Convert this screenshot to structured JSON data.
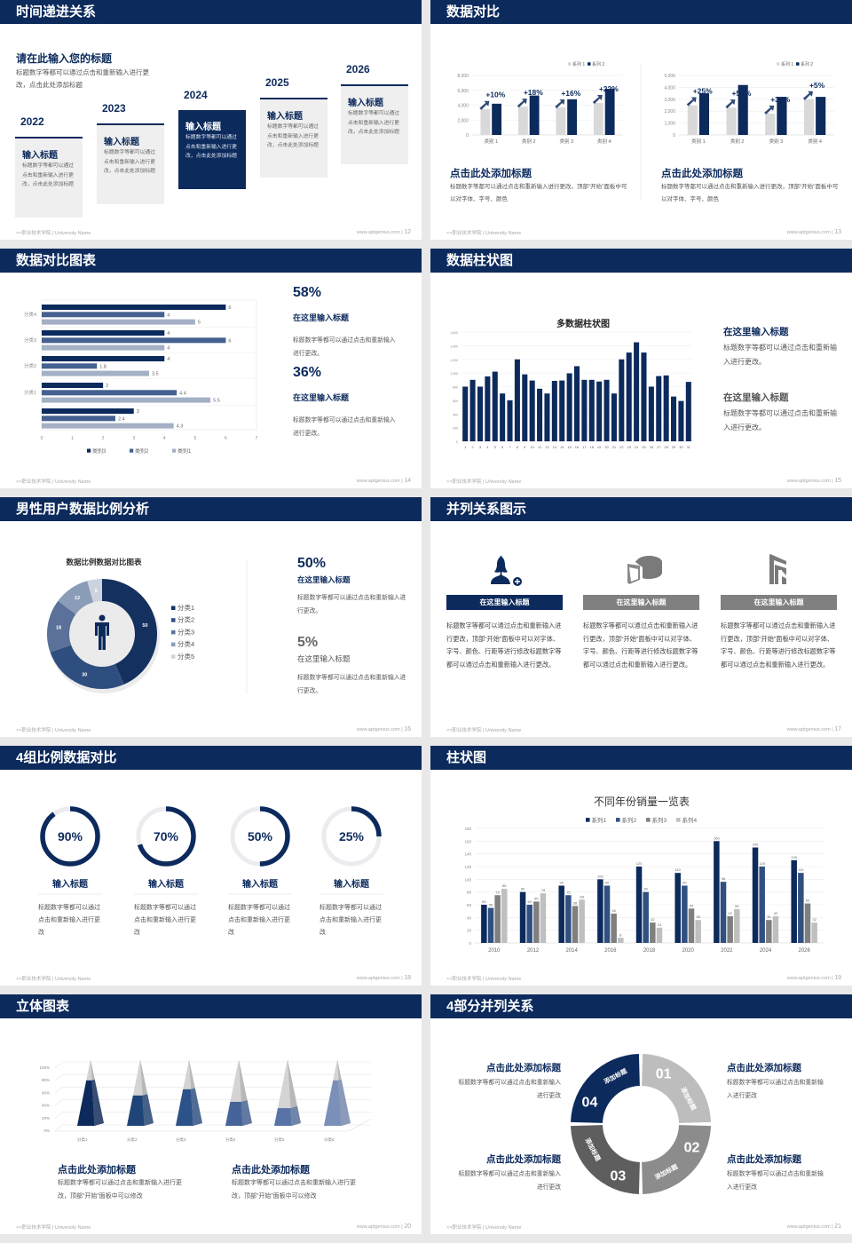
{
  "colors": {
    "navy": "#0c2a5c",
    "light_gray": "#d9d9d9",
    "mid_gray": "#808080",
    "bg": "#e8e8e8"
  },
  "footer": {
    "school": "××职业技术学院 | University Name",
    "site": "www.aptgenius.com"
  },
  "slides": [
    {
      "title": "时间递进关系",
      "page": "12",
      "heading": "请在此输入您的标题",
      "desc": "标题数字等都可以通过点击和重新输入进行更改，点击此处添加标题",
      "steps": [
        {
          "year": "2022",
          "title": "输入标题",
          "text": "标题数字等都可以通过点击和重新输入进行更改，点击此处添加标题"
        },
        {
          "year": "2023",
          "title": "输入标题",
          "text": "标题数字等都可以通过点击和重新输入进行更改，点击此处添加标题"
        },
        {
          "year": "2024",
          "title": "输入标题",
          "text": "标题数字等都可以通过点击和重新输入进行更改，点击此处添加标题"
        },
        {
          "year": "2025",
          "title": "输入标题",
          "text": "标题数字等都可以通过点击和重新输入进行更改，点击此处添加标题"
        },
        {
          "year": "2026",
          "title": "输入标题",
          "text": "标题数字等都可以通过点击和重新输入进行更改，点击此处添加标题"
        }
      ]
    },
    {
      "title": "数据对比",
      "page": "13",
      "captions": [
        {
          "title": "点击此处添加标题",
          "text": "标题数字等都可以通过点击和重新输入进行更改，顶部“开始”面板中可以对字体、字号、颜色"
        },
        {
          "title": "点击此处添加标题",
          "text": "标题数字等都可以通过点击和重新输入进行更改，顶部“开始”面板中可以对字体、字号、颜色"
        }
      ]
    },
    {
      "title": "数据对比图表",
      "page": "14",
      "stats": [
        {
          "value": "58%",
          "title": "在这里输入标题",
          "text": "标题数字等都可以通过点击和重新输入进行更改。"
        },
        {
          "value": "36%",
          "title": "在这里输入标题",
          "text": "标题数字等都可以通过点击和重新输入进行更改。"
        }
      ]
    },
    {
      "title": "数据柱状图",
      "page": "15",
      "stats": [
        {
          "title": "在这里输入标题",
          "text": "标题数字等都可以通过点击和重新输入进行更改。"
        },
        {
          "title": "在这里输入标题",
          "text": "标题数字等都可以通过点击和重新输入进行更改。"
        }
      ]
    },
    {
      "title": "男性用户数据比例分析",
      "page": "16",
      "stats": [
        {
          "value": "50%",
          "title": "在这里输入标题",
          "text": "标题数字等都可以通过点击和重新输入进行更改。"
        },
        {
          "value": "5%",
          "title": "在这里输入标题",
          "text": "标题数字等都可以通过点击和重新输入进行更改。"
        }
      ]
    },
    {
      "title": "并列关系图示",
      "page": "17",
      "items": [
        {
          "icon": "user-add-icon",
          "label": "在这里输入标题",
          "text": "标题数字等都可以通过点击和重新输入进行更改，顶部“开始”面板中可以对字体、字号、颜色、行距等进行修改标题数字等都可以通过点击和重新输入进行更改。",
          "active": true
        },
        {
          "icon": "pie-chart-icon",
          "label": "在这里输入标题",
          "text": "标题数字等都可以通过点击和重新输入进行更改，顶部“开始”面板中可以对字体、字号、颜色、行距等进行修改标题数字等都可以通过点击和重新输入进行更改。",
          "active": false
        },
        {
          "icon": "building-icon",
          "label": "在这里输入标题",
          "text": "标题数字等都可以通过点击和重新输入进行更改，顶部“开始”面板中可以对字体、字号、颜色、行距等进行修改标题数字等都可以通过点击和重新输入进行更改。",
          "active": false
        }
      ]
    },
    {
      "title": "4组比例数据对比",
      "page": "18",
      "items": [
        {
          "label": "90%",
          "value": 90,
          "title": "输入标题",
          "text": "标题数字等都可以通过点击和重新输入进行更改"
        },
        {
          "label": "70%",
          "value": 70,
          "title": "输入标题",
          "text": "标题数字等都可以通过点击和重新输入进行更改"
        },
        {
          "label": "50%",
          "value": 50,
          "title": "输入标题",
          "text": "标题数字等都可以通过点击和重新输入进行更改"
        },
        {
          "label": "25%",
          "value": 25,
          "title": "输入标题",
          "text": "标题数字等都可以通过点击和重新输入进行更改"
        }
      ]
    },
    {
      "title": "柱状图",
      "page": "19"
    },
    {
      "title": "立体图表",
      "page": "20",
      "captions": [
        {
          "title": "点击此处添加标题",
          "text": "标题数字等都可以通过点击和重新输入进行更改，顶部“开始”面板中可以修改"
        },
        {
          "title": "点击此处添加标题",
          "text": "标题数字等都可以通过点击和重新输入进行更改，顶部“开始”面板中可以修改"
        }
      ]
    },
    {
      "title": "4部分并列关系",
      "page": "21",
      "segments": [
        {
          "number": "01",
          "label": "添加标题",
          "color": "#bdbdbd"
        },
        {
          "number": "02",
          "label": "添加标题",
          "color": "#8c8c8c"
        },
        {
          "number": "03",
          "label": "添加标题",
          "color": "#5e5e5e"
        },
        {
          "number": "04",
          "label": "添加标题",
          "color": "#0c2a5c"
        }
      ],
      "blocks": [
        {
          "title": "点击此处添加标题",
          "text": "标题数字等都可以通过点击和重新输入进行更改"
        },
        {
          "title": "点击此处添加标题",
          "text": "标题数字等都可以通过点击和重新输入进行更改"
        },
        {
          "title": "点击此处添加标题",
          "text": "标题数字等都可以通过点击和重新输入进行更改"
        },
        {
          "title": "点击此处添加标题",
          "text": "标题数字等都可以通过点击和重新输入进行更改"
        }
      ]
    }
  ],
  "chart_data": [
    {
      "type": "bar",
      "categories": [
        "类别 1",
        "类别 2",
        "类别 3",
        "类别 4"
      ],
      "ylim": [
        0,
        8000
      ],
      "ytick_labels": [
        "0",
        "2,000",
        "4,000",
        "6,000",
        "8,000"
      ],
      "series": [
        {
          "name": "系列 1",
          "values": [
            3500,
            3800,
            3700,
            4300
          ],
          "color": "#d9d9d9"
        },
        {
          "name": "系列 2",
          "values": [
            4200,
            5300,
            4800,
            6200
          ],
          "color": "#0c2a5c"
        }
      ],
      "annotations": [
        "+10%",
        "+18%",
        "+16%",
        "+22%"
      ],
      "legend": "top-right",
      "grid": true
    },
    {
      "type": "bar",
      "categories": [
        "类别 1",
        "类别 2",
        "类别 3",
        "类别 4"
      ],
      "ylim": [
        0,
        5000
      ],
      "ytick_labels": [
        "0",
        "1,000",
        "2,000",
        "3,000",
        "4,000",
        "5,000"
      ],
      "series": [
        {
          "name": "系列 1",
          "values": [
            2500,
            2300,
            1800,
            3000
          ],
          "color": "#d9d9d9"
        },
        {
          "name": "系列 2",
          "values": [
            3500,
            4200,
            3200,
            3200
          ],
          "color": "#0c2a5c"
        }
      ],
      "annotations": [
        "+25%",
        "+50%",
        "+34%",
        "+5%"
      ],
      "legend": "top-right",
      "grid": true
    },
    {
      "type": "bar",
      "orientation": "horizontal",
      "categories": [
        "分类4",
        "分类3",
        "分类2",
        "分类1",
        ""
      ],
      "xlim": [
        0,
        7
      ],
      "xtick_labels": [
        "0",
        "1",
        "2",
        "3",
        "4",
        "5",
        "6",
        "7"
      ],
      "series": [
        {
          "name": "类别3",
          "values": [
            6,
            4,
            4,
            2,
            3
          ],
          "color": "#0c2a5c"
        },
        {
          "name": "类别2",
          "values": [
            4,
            6,
            1.8,
            4.4,
            2.4
          ],
          "color": "#44618f"
        },
        {
          "name": "类别1",
          "values": [
            5,
            4,
            3.5,
            5.5,
            4.3
          ],
          "color": "#a3b0c6"
        }
      ],
      "legend": "bottom",
      "grid": true
    },
    {
      "type": "bar",
      "title": "多数据柱状图",
      "categories": [
        "1",
        "2",
        "3",
        "4",
        "5",
        "6",
        "7",
        "8",
        "9",
        "10",
        "11",
        "12",
        "13",
        "14",
        "15",
        "16",
        "17",
        "18",
        "19",
        "20",
        "21",
        "22",
        "23",
        "24",
        "25",
        "26",
        "27",
        "28",
        "29",
        "30",
        "31"
      ],
      "ylim": [
        0,
        1600
      ],
      "ytick_labels": [
        "0",
        "200",
        "400",
        "600",
        "800",
        "1,000",
        "1,200",
        "1,400",
        "1,600"
      ],
      "series": [
        {
          "values": [
            800,
            900,
            800,
            950,
            1020,
            700,
            600,
            1200,
            980,
            890,
            770,
            700,
            885,
            890,
            995,
            1100,
            900,
            900,
            875,
            900,
            700,
            1200,
            1300,
            1450,
            1300,
            800,
            955,
            965,
            655,
            590,
            870
          ],
          "color": "#0c2a5c"
        }
      ],
      "grid": true
    },
    {
      "type": "pie",
      "title": "数据比例数据对比图表",
      "categories": [
        "分类1",
        "分类2",
        "分类3",
        "分类4",
        "分类5"
      ],
      "values": [
        50,
        30,
        18,
        12,
        5
      ],
      "colors": [
        "#14305f",
        "#2f4e80",
        "#5b7199",
        "#8b9cb9",
        "#cdd3de"
      ],
      "legend": "right",
      "donut": true
    },
    {
      "type": "bar",
      "title": "不同年份销量一览表",
      "categories": [
        "2010",
        "2012",
        "2014",
        "2016",
        "2018",
        "2020",
        "2022",
        "2024",
        "2026"
      ],
      "ylim": [
        0,
        180
      ],
      "ytick_labels": [
        "0",
        "20",
        "40",
        "60",
        "80",
        "100",
        "120",
        "140",
        "160",
        "180"
      ],
      "series": [
        {
          "name": "系列1",
          "values": [
            60,
            80,
            90,
            100,
            120,
            110,
            160,
            150,
            130
          ],
          "color": "#0c2a5c"
        },
        {
          "name": "系列2",
          "values": [
            55,
            60,
            75,
            90,
            80,
            90,
            96,
            120,
            110
          ],
          "color": "#2f5080"
        },
        {
          "name": "系列3",
          "values": [
            75,
            65,
            58,
            46,
            32,
            54,
            42,
            36,
            62
          ],
          "color": "#7f7f7f"
        },
        {
          "name": "系列4",
          "values": [
            85,
            78,
            68,
            8,
            24,
            36,
            53,
            42,
            32
          ],
          "color": "#bfbfbf"
        }
      ],
      "legend": "top",
      "grid": true
    },
    {
      "type": "bar",
      "style": "3d-pyramid",
      "categories": [
        "分类1",
        "分类2",
        "分类3",
        "分类4",
        "分类5",
        "分类6"
      ],
      "ylim": [
        0,
        100
      ],
      "ytick_labels": [
        "0%",
        "20%",
        "40%",
        "60%",
        "80%",
        "100%"
      ],
      "values": [
        72,
        48,
        58,
        38,
        28,
        72
      ],
      "colors": [
        "#0c2a5c",
        "#1f4478",
        "#2d5289",
        "#46649a",
        "#5874a6",
        "#7b90b8"
      ],
      "grid": true
    }
  ]
}
